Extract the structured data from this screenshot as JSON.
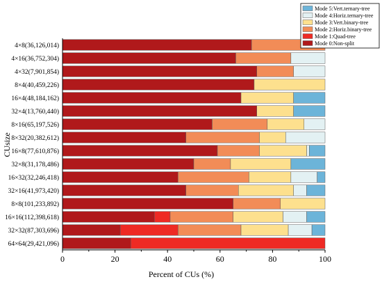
{
  "chart_data": {
    "type": "bar",
    "orientation": "horizontal",
    "stacked": true,
    "xlabel": "Percent of CUs (%)",
    "ylabel": "CUsize",
    "xlim": [
      0,
      100
    ],
    "xticks": [
      "0",
      "20",
      "40",
      "60",
      "80",
      "100"
    ],
    "grid": false,
    "legend_position": "top-right",
    "categories": [
      "4×8(36,126,014)",
      "4×16(36,752,304)",
      "4×32(7,901,854)",
      "8×4(40,459,226)",
      "16×4(48,184,162)",
      "32×4(13,760,440)",
      "8×16(65,197,526)",
      "8×32(20,382,612)",
      "16×8(77,610,876)",
      "32×8(31,178,486)",
      "16×32(32,246,418)",
      "32×16(41,973,420)",
      "8×8(101,233,892)",
      "16×16(112,398,618)",
      "32×32(87,303,696)",
      "64×64(29,421,096)"
    ],
    "series": [
      {
        "name": "Mode 0:Non-split",
        "color": "#b0191b",
        "values": [
          72,
          66,
          74,
          73,
          68,
          74,
          57,
          47,
          59,
          50,
          44,
          47,
          65,
          35,
          22,
          26
        ]
      },
      {
        "name": "Mode 1:Quad-tree",
        "color": "#ee2a24",
        "values": [
          0,
          0,
          0,
          0,
          0,
          0,
          0,
          0,
          0,
          0,
          0,
          0,
          0,
          6,
          22,
          74
        ]
      },
      {
        "name": "Mode 2:Horiz.binary-tree",
        "color": "#f28c57",
        "values": [
          28,
          21,
          14,
          0,
          0,
          0,
          21,
          28,
          16,
          14,
          27,
          20,
          18,
          24,
          24,
          0
        ]
      },
      {
        "name": "Mode 3:Vert.binary-tree",
        "color": "#fde08e",
        "values": [
          0,
          0,
          0,
          27,
          20,
          14,
          14,
          10,
          18,
          23,
          16,
          21,
          17,
          19,
          18,
          0
        ]
      },
      {
        "name": "Mode 4:Horiz.ternary-tree",
        "color": "#e3f1f3",
        "values": [
          0,
          13,
          12,
          0,
          0,
          0,
          8,
          15,
          1,
          0,
          10,
          5,
          0,
          9,
          9,
          0
        ]
      },
      {
        "name": "Mode 5:Vert.ternary-tree",
        "color": "#6cb4d9",
        "values": [
          0,
          0,
          0,
          0,
          12,
          12,
          0,
          0,
          6,
          13,
          3,
          7,
          0,
          7,
          5,
          0
        ]
      }
    ]
  }
}
